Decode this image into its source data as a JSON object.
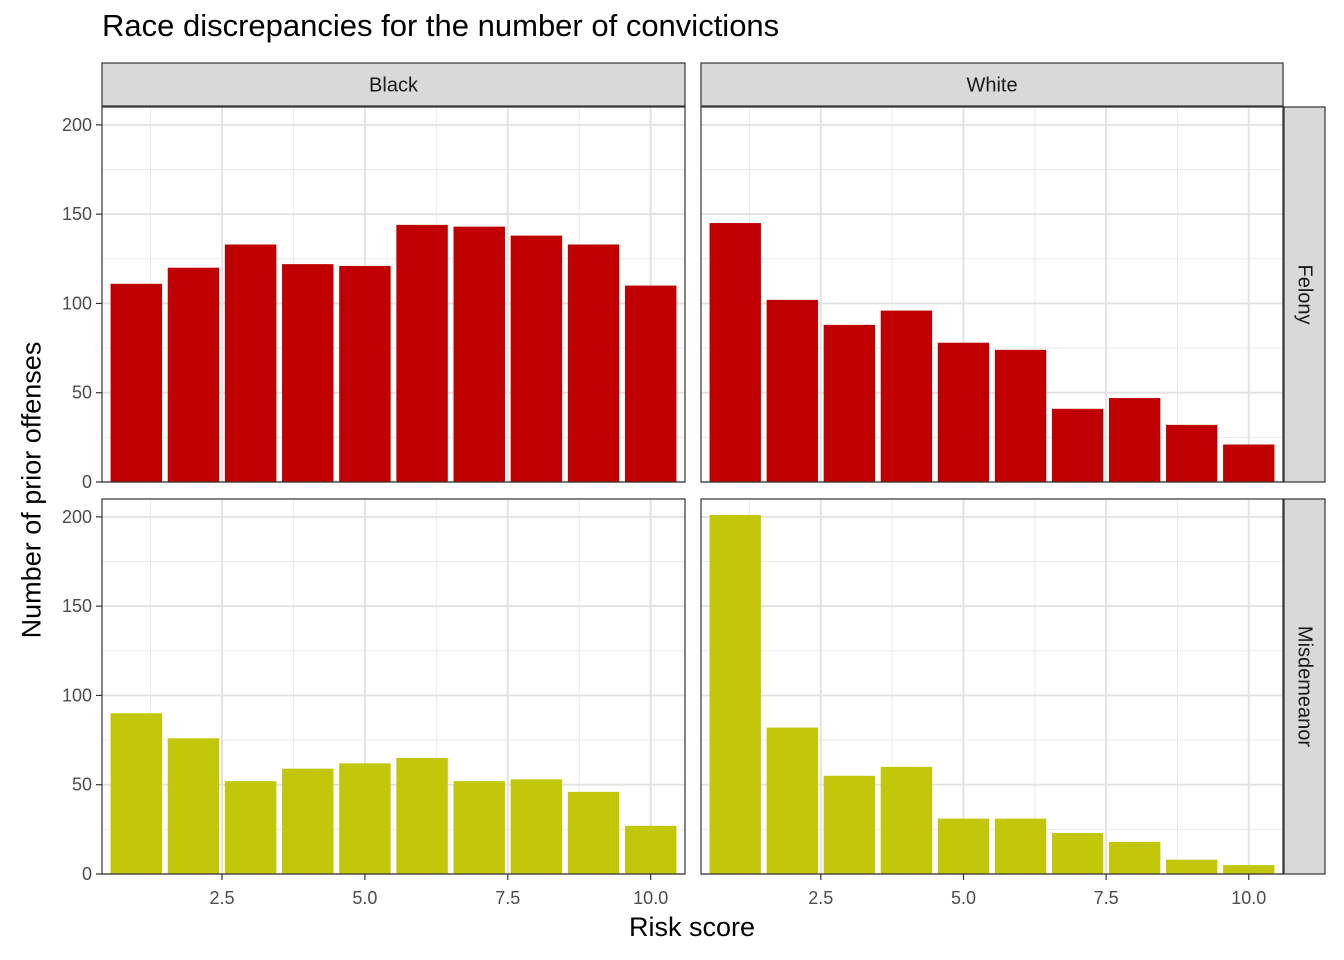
{
  "chart_data": {
    "type": "bar",
    "title": "Race discrepancies for the number of convictions",
    "xlabel": "Risk score",
    "ylabel": "Number of prior offenses",
    "x": [
      1,
      2,
      3,
      4,
      5,
      6,
      7,
      8,
      9,
      10
    ],
    "xticks": [
      "2.5",
      "5.0",
      "7.5",
      "10.0"
    ],
    "yticks": [
      "0",
      "50",
      "100",
      "150",
      "200"
    ],
    "xlim": [
      0.4,
      10.6
    ],
    "ylim": [
      0,
      210
    ],
    "grid": true,
    "columns": [
      "Black",
      "White"
    ],
    "rows": [
      "Felony",
      "Misdemeanor"
    ],
    "colors": {
      "Felony": "#C00000",
      "Misdemeanor": "#C2C70A"
    },
    "panels": [
      {
        "column": "Black",
        "row": "Felony",
        "values": [
          111,
          120,
          133,
          122,
          121,
          144,
          143,
          138,
          133,
          110
        ]
      },
      {
        "column": "White",
        "row": "Felony",
        "values": [
          145,
          102,
          88,
          96,
          78,
          74,
          41,
          47,
          32,
          21
        ]
      },
      {
        "column": "Black",
        "row": "Misdemeanor",
        "values": [
          90,
          76,
          52,
          59,
          62,
          65,
          52,
          53,
          46,
          27
        ]
      },
      {
        "column": "White",
        "row": "Misdemeanor",
        "values": [
          201,
          82,
          55,
          60,
          31,
          31,
          23,
          18,
          8,
          5
        ]
      }
    ]
  }
}
